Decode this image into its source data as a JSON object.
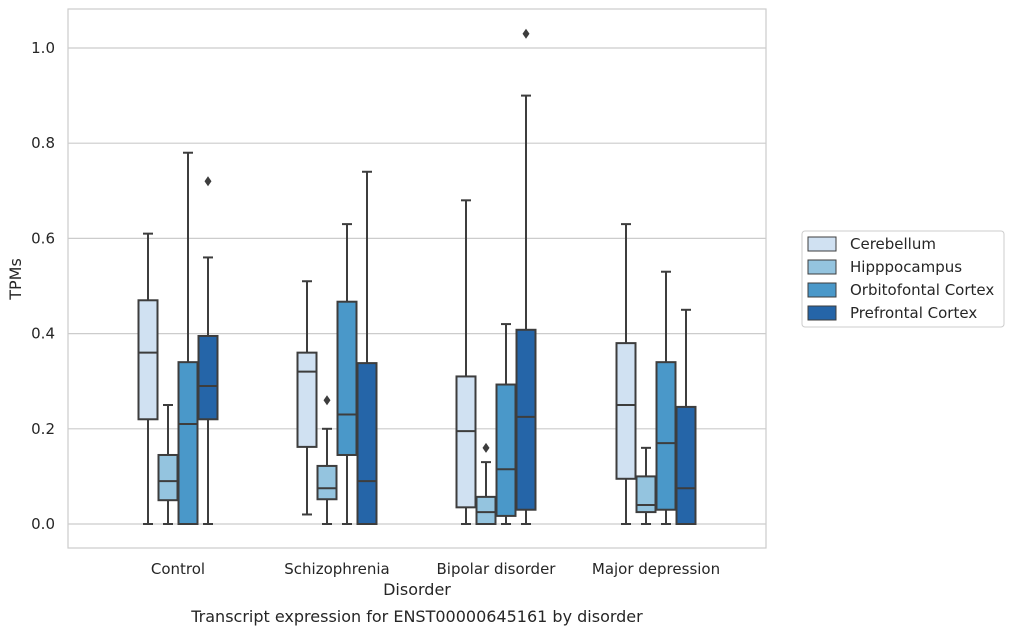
{
  "chart_data": {
    "type": "box",
    "title": "",
    "caption": "Transcript expression for ENST00000645161 by disorder",
    "xlabel": "Disorder",
    "ylabel": "TPMs",
    "ylim": [
      -0.05,
      1.08
    ],
    "yticks": [
      "0.0",
      "0.2",
      "0.4",
      "0.6",
      "0.8",
      "1.0"
    ],
    "categories": [
      "Control",
      "Schizophrenia",
      "Bipolar disorder",
      "Major depression"
    ],
    "grid": "horizontal",
    "legend_position": "right",
    "series": [
      {
        "name": "Cerebellum",
        "color": "#d0e1f2",
        "boxes": [
          {
            "whislo": 0.0,
            "q1": 0.22,
            "med": 0.36,
            "q3": 0.47,
            "whishi": 0.61,
            "fliers": []
          },
          {
            "whislo": 0.02,
            "q1": 0.162,
            "med": 0.32,
            "q3": 0.36,
            "whishi": 0.51,
            "fliers": []
          },
          {
            "whislo": 0.0,
            "q1": 0.035,
            "med": 0.195,
            "q3": 0.31,
            "whishi": 0.68,
            "fliers": []
          },
          {
            "whislo": 0.0,
            "q1": 0.095,
            "med": 0.25,
            "q3": 0.38,
            "whishi": 0.63,
            "fliers": []
          }
        ]
      },
      {
        "name": "Hipppocampus",
        "color": "#94c4df",
        "boxes": [
          {
            "whislo": 0.0,
            "q1": 0.05,
            "med": 0.09,
            "q3": 0.145,
            "whishi": 0.25,
            "fliers": []
          },
          {
            "whislo": 0.0,
            "q1": 0.052,
            "med": 0.075,
            "q3": 0.122,
            "whishi": 0.2,
            "fliers": [
              0.26
            ]
          },
          {
            "whislo": 0.0,
            "q1": 0.0,
            "med": 0.025,
            "q3": 0.057,
            "whishi": 0.13,
            "fliers": [
              0.16
            ]
          },
          {
            "whislo": 0.0,
            "q1": 0.025,
            "med": 0.04,
            "q3": 0.1,
            "whishi": 0.16,
            "fliers": []
          }
        ]
      },
      {
        "name": "Orbitofontal Cortex",
        "color": "#4a98c9",
        "boxes": [
          {
            "whislo": 0.0,
            "q1": 0.0,
            "med": 0.21,
            "q3": 0.34,
            "whishi": 0.78,
            "fliers": []
          },
          {
            "whislo": 0.0,
            "q1": 0.145,
            "med": 0.23,
            "q3": 0.467,
            "whishi": 0.63,
            "fliers": []
          },
          {
            "whislo": 0.0,
            "q1": 0.017,
            "med": 0.115,
            "q3": 0.293,
            "whishi": 0.42,
            "fliers": []
          },
          {
            "whislo": 0.0,
            "q1": 0.03,
            "med": 0.17,
            "q3": 0.34,
            "whishi": 0.53,
            "fliers": []
          }
        ]
      },
      {
        "name": "Prefrontal Cortex",
        "color": "#2565a8",
        "boxes": [
          {
            "whislo": 0.0,
            "q1": 0.22,
            "med": 0.29,
            "q3": 0.395,
            "whishi": 0.56,
            "fliers": [
              0.72
            ]
          },
          {
            "whislo": 0.0,
            "q1": 0.0,
            "med": 0.09,
            "q3": 0.338,
            "whishi": 0.74,
            "fliers": []
          },
          {
            "whislo": 0.0,
            "q1": 0.03,
            "med": 0.225,
            "q3": 0.408,
            "whishi": 0.9,
            "fliers": [
              1.03
            ]
          },
          {
            "whislo": 0.0,
            "q1": 0.0,
            "med": 0.075,
            "q3": 0.246,
            "whishi": 0.45,
            "fliers": []
          }
        ]
      }
    ]
  }
}
